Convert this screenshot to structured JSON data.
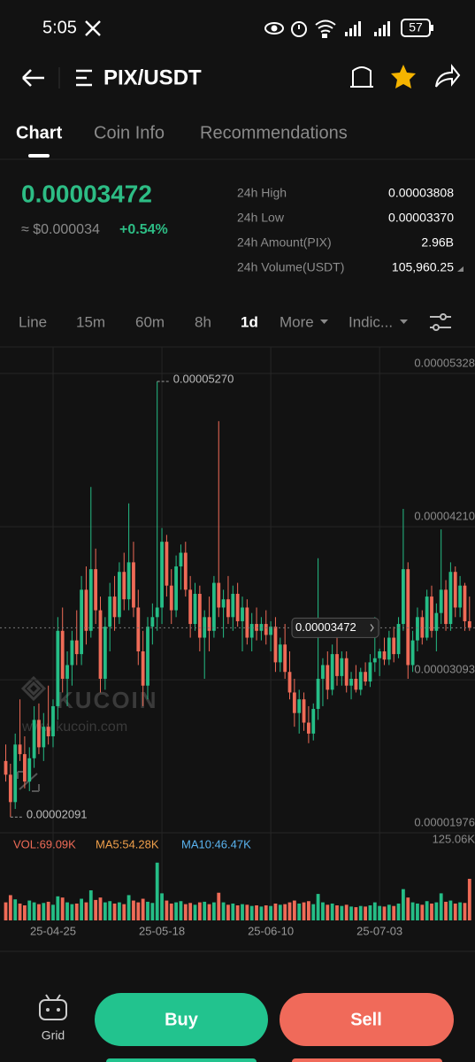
{
  "status_bar": {
    "time": "5:05",
    "battery": "57"
  },
  "header": {
    "title": "PIX/USDT"
  },
  "tabs": [
    "Chart",
    "Coin Info",
    "Recommendations"
  ],
  "ticker": {
    "price": "0.00003472",
    "usd": "≈ $0.000034",
    "change": "+0.54%",
    "stats": [
      {
        "label": "24h High",
        "value": "0.00003808"
      },
      {
        "label": "24h Low",
        "value": "0.00003370"
      },
      {
        "label": "24h Amount(PIX)",
        "value": "2.96B"
      },
      {
        "label": "24h Volume(USDT)",
        "value": "105,960.25"
      }
    ]
  },
  "intervals": [
    "Line",
    "15m",
    "60m",
    "8h",
    "1d",
    "More",
    "Indic..."
  ],
  "indicators": [
    "VOL:69.09K",
    "MA5:54.28K",
    "MA10:46.47K"
  ],
  "watermark": {
    "brand": "KUCOIN",
    "url": "www.kucoin.com"
  },
  "footer": {
    "grid": "Grid",
    "buy": "Buy",
    "sell": "Sell"
  },
  "chart_data": {
    "type": "candlestick",
    "up_color": "#25bd86",
    "down_color": "#ef6b57",
    "grid": true,
    "ylim": [
      1.976e-05,
      5.522e-05
    ],
    "yticks": [
      {
        "value": 5.328e-05,
        "label": "0.00005328"
      },
      {
        "value": 4.21e-05,
        "label": "0.00004210"
      },
      {
        "value": 3.093e-05,
        "label": "0.00003093"
      },
      {
        "value": 1.976e-05,
        "label": "0.00001976"
      }
    ],
    "high_marker": {
      "value": 5.27e-05,
      "label": "0.00005270"
    },
    "low_marker": {
      "value": 2.091e-05,
      "label": "0.00002091"
    },
    "last_price": {
      "value": 3.472e-05,
      "label": "0.00003472"
    },
    "categories": [
      null,
      null,
      null,
      null,
      null,
      null,
      null,
      null,
      null,
      null,
      "25-04-25",
      null,
      null,
      null,
      null,
      null,
      null,
      null,
      null,
      null,
      null,
      null,
      null,
      null,
      null,
      null,
      null,
      null,
      null,
      null,
      null,
      null,
      null,
      "25-05-18",
      null,
      null,
      null,
      null,
      null,
      null,
      null,
      null,
      null,
      null,
      null,
      null,
      null,
      null,
      null,
      null,
      null,
      null,
      null,
      null,
      null,
      null,
      "25-06-10",
      null,
      null,
      null,
      null,
      null,
      null,
      null,
      null,
      null,
      null,
      null,
      null,
      null,
      null,
      null,
      null,
      null,
      null,
      null,
      null,
      null,
      null,
      "25-07-03",
      null,
      null,
      null,
      null,
      null,
      null,
      null,
      null,
      null,
      null,
      null,
      null,
      null,
      null,
      null,
      null,
      null,
      null,
      null
    ],
    "candles": [
      [
        2.5e-05,
        2.62e-05,
        2.35e-05,
        2.4e-05
      ],
      [
        2.4e-05,
        2.48e-05,
        2.091e-05,
        2.2e-05
      ],
      [
        2.2e-05,
        2.7e-05,
        2.15e-05,
        2.62e-05
      ],
      [
        2.62e-05,
        2.95e-05,
        2.5e-05,
        2.55e-05
      ],
      [
        2.55e-05,
        2.68e-05,
        2.3e-05,
        2.35e-05
      ],
      [
        2.35e-05,
        2.6e-05,
        2.28e-05,
        2.52e-05
      ],
      [
        2.52e-05,
        2.9e-05,
        2.45e-05,
        2.8e-05
      ],
      [
        2.8e-05,
        2.92e-05,
        2.55e-05,
        2.6e-05
      ],
      [
        2.6e-05,
        2.85e-05,
        2.5e-05,
        2.75e-05
      ],
      [
        2.75e-05,
        3.05e-05,
        2.62e-05,
        2.68e-05
      ],
      [
        2.68e-05,
        2.95e-05,
        2.6e-05,
        2.9e-05
      ],
      [
        2.9e-05,
        3.55e-05,
        2.8e-05,
        3.45e-05
      ],
      [
        3.45e-05,
        3.62e-05,
        3e-05,
        3.1e-05
      ],
      [
        3.1e-05,
        3.3e-05,
        2.9e-05,
        3.2e-05
      ],
      [
        3.2e-05,
        3.45e-05,
        3.05e-05,
        3.38e-05
      ],
      [
        3.38e-05,
        3.6e-05,
        3.2e-05,
        3.28e-05
      ],
      [
        3.28e-05,
        3.85e-05,
        3.2e-05,
        3.75e-05
      ],
      [
        3.75e-05,
        3.92e-05,
        3.35e-05,
        3.45e-05
      ],
      [
        3.45e-05,
        4.5e-05,
        3.4e-05,
        3.9e-05
      ],
      [
        3.9e-05,
        4.05e-05,
        3.5e-05,
        3.6e-05
      ],
      [
        3.6e-05,
        3.7e-05,
        3e-05,
        3.1e-05
      ],
      [
        3.1e-05,
        3.55e-05,
        3.02e-05,
        3.48e-05
      ],
      [
        3.48e-05,
        3.8e-05,
        3.3e-05,
        3.7e-05
      ],
      [
        3.7e-05,
        3.85e-05,
        3.45e-05,
        3.55e-05
      ],
      [
        3.55e-05,
        3.95e-05,
        3.5e-05,
        3.88e-05
      ],
      [
        3.88e-05,
        4.02e-05,
        3.6e-05,
        3.68e-05
      ],
      [
        3.68e-05,
        4.38e-05,
        3.6e-05,
        3.95e-05
      ],
      [
        3.95e-05,
        4.1e-05,
        3.55e-05,
        3.62e-05
      ],
      [
        3.62e-05,
        3.75e-05,
        3.2e-05,
        3.3e-05
      ],
      [
        3.3e-05,
        3.45e-05,
        2.9e-05,
        3.05e-05
      ],
      [
        3.05e-05,
        3.55e-05,
        2.95e-05,
        3.48e-05
      ],
      [
        3.48e-05,
        3.65e-05,
        3.35e-05,
        3.55e-05
      ],
      [
        3.55e-05,
        5.27e-05,
        3.45e-05,
        3.62e-05
      ],
      [
        3.62e-05,
        4.2e-05,
        3.5e-05,
        4.1e-05
      ],
      [
        4.1e-05,
        4.15e-05,
        3.7e-05,
        3.78e-05
      ],
      [
        3.78e-05,
        3.9e-05,
        3.5e-05,
        3.6e-05
      ],
      [
        3.6e-05,
        4e-05,
        3.55e-05,
        3.92e-05
      ],
      [
        3.92e-05,
        4.08e-05,
        3.75e-05,
        4.02e-05
      ],
      [
        4.02e-05,
        4.1e-05,
        3.7e-05,
        3.75e-05
      ],
      [
        3.75e-05,
        3.85e-05,
        3.4e-05,
        3.5e-05
      ],
      [
        3.5e-05,
        3.8e-05,
        3.45e-05,
        3.72e-05
      ],
      [
        3.72e-05,
        3.78e-05,
        3.3e-05,
        3.4e-05
      ],
      [
        3.4e-05,
        3.6e-05,
        3.1e-05,
        3.55e-05
      ],
      [
        3.55e-05,
        3.7e-05,
        3.3e-05,
        3.45e-05
      ],
      [
        3.45e-05,
        3.85e-05,
        3.4e-05,
        3.8e-05
      ],
      [
        3.8e-05,
        4.98e-05,
        3.55e-05,
        3.62e-05
      ],
      [
        3.62e-05,
        3.75e-05,
        3.4e-05,
        3.68e-05
      ],
      [
        3.68e-05,
        3.85e-05,
        3.5e-05,
        3.55e-05
      ],
      [
        3.55e-05,
        3.78e-05,
        3.45e-05,
        3.72e-05
      ],
      [
        3.72e-05,
        3.8e-05,
        3.48e-05,
        3.52e-05
      ],
      [
        3.52e-05,
        3.7e-05,
        3.3e-05,
        3.62e-05
      ],
      [
        3.62e-05,
        3.68e-05,
        3.35e-05,
        3.4e-05
      ],
      [
        3.4e-05,
        3.58e-05,
        3.3e-05,
        3.5e-05
      ],
      [
        3.5e-05,
        3.62e-05,
        3.38e-05,
        3.45e-05
      ],
      [
        3.45e-05,
        3.55e-05,
        3.38e-05,
        3.5e-05
      ],
      [
        3.5e-05,
        3.6e-05,
        3.35e-05,
        3.42e-05
      ],
      [
        3.42e-05,
        3.52e-05,
        3.3e-05,
        3.48e-05
      ],
      [
        3.48e-05,
        3.55e-05,
        3.15e-05,
        3.22e-05
      ],
      [
        3.22e-05,
        3.4e-05,
        3.15e-05,
        3.35e-05
      ],
      [
        3.35e-05,
        3.5e-05,
        3.1e-05,
        3.15e-05
      ],
      [
        3.15e-05,
        3.3e-05,
        2.95e-05,
        3e-05
      ],
      [
        3e-05,
        3.1e-05,
        2.75e-05,
        2.85e-05
      ],
      [
        2.85e-05,
        3.02e-05,
        2.7e-05,
        2.95e-05
      ],
      [
        2.95e-05,
        3e-05,
        2.72e-05,
        2.78e-05
      ],
      [
        2.78e-05,
        2.9e-05,
        2.63e-05,
        2.7e-05
      ],
      [
        2.7e-05,
        2.92e-05,
        2.65e-05,
        2.88e-05
      ],
      [
        2.88e-05,
        3.98e-05,
        2.8e-05,
        3.1e-05
      ],
      [
        3.1e-05,
        3.25e-05,
        2.9e-05,
        3.2e-05
      ],
      [
        3.2e-05,
        3.3e-05,
        2.95e-05,
        3.02e-05
      ],
      [
        3.02e-05,
        3.35e-05,
        2.98e-05,
        3.28e-05
      ],
      [
        3.28e-05,
        3.4e-05,
        3.05e-05,
        3.12e-05
      ],
      [
        3.12e-05,
        3.3e-05,
        3.05e-05,
        3.25e-05
      ],
      [
        3.25e-05,
        3.3e-05,
        3e-05,
        3.05e-05
      ],
      [
        3.05e-05,
        3.15e-05,
        2.95e-05,
        3.1e-05
      ],
      [
        3.1e-05,
        3.2e-05,
        3e-05,
        3.02e-05
      ],
      [
        3.02e-05,
        3.18e-05,
        2.98e-05,
        3.15e-05
      ],
      [
        3.15e-05,
        3.22e-05,
        3.05e-05,
        3.08e-05
      ],
      [
        3.08e-05,
        3.28e-05,
        3.04e-05,
        3.22e-05
      ],
      [
        3.22e-05,
        3.55e-05,
        3.15e-05,
        3.25e-05
      ],
      [
        3.25e-05,
        3.32e-05,
        3.12e-05,
        3.3e-05
      ],
      [
        3.3e-05,
        3.4e-05,
        3.2e-05,
        3.24e-05
      ],
      [
        3.24e-05,
        3.45e-05,
        3.2e-05,
        3.4e-05
      ],
      [
        3.4e-05,
        3.48e-05,
        3.22e-05,
        3.28e-05
      ],
      [
        3.28e-05,
        3.55e-05,
        3.25e-05,
        3.5e-05
      ],
      [
        3.5e-05,
        4.34e-05,
        3.45e-05,
        3.9e-05
      ],
      [
        3.9e-05,
        3.95e-05,
        3.1e-05,
        3.2e-05
      ],
      [
        3.2e-05,
        3.45e-05,
        3.15e-05,
        3.38e-05
      ],
      [
        3.38e-05,
        3.62e-05,
        3.3e-05,
        3.55e-05
      ],
      [
        3.55e-05,
        3.6e-05,
        3.35e-05,
        3.4e-05
      ],
      [
        3.4e-05,
        3.75e-05,
        3.38e-05,
        3.7e-05
      ],
      [
        3.7e-05,
        3.78e-05,
        3.4e-05,
        3.45e-05
      ],
      [
        3.45e-05,
        3.65e-05,
        3.3e-05,
        3.58e-05
      ],
      [
        3.58e-05,
        4.19e-05,
        3.5e-05,
        3.75e-05
      ],
      [
        3.75e-05,
        3.82e-05,
        3.45e-05,
        3.5e-05
      ],
      [
        3.5e-05,
        3.95e-05,
        3.45e-05,
        3.88e-05
      ],
      [
        3.88e-05,
        3.92e-05,
        3.55e-05,
        3.62e-05
      ],
      [
        3.62e-05,
        3.85e-05,
        3.55e-05,
        3.78e-05
      ],
      [
        3.78e-05,
        3.8e-05,
        3.45e-05,
        3.52e-05
      ],
      [
        3.52e-05,
        3.7e-05,
        3.45e-05,
        3.472e-05
      ]
    ],
    "volume": [
      30000,
      42000,
      35000,
      28000,
      25000,
      33000,
      30000,
      27000,
      29000,
      31000,
      26000,
      40000,
      38000,
      30000,
      27000,
      28000,
      36000,
      30000,
      50000,
      34000,
      38000,
      30000,
      32000,
      28000,
      30000,
      27000,
      42000,
      33000,
      30000,
      36000,
      31000,
      29000,
      96000,
      45000,
      33000,
      28000,
      30000,
      32000,
      27000,
      29000,
      26000,
      30000,
      31000,
      27000,
      30000,
      46000,
      30000,
      26000,
      28000,
      25000,
      27000,
      26000,
      24000,
      25000,
      23000,
      25000,
      24000,
      28000,
      26000,
      27000,
      30000,
      33000,
      28000,
      30000,
      32000,
      27000,
      44000,
      30000,
      26000,
      28000,
      25000,
      24000,
      26000,
      23000,
      22000,
      24000,
      23000,
      25000,
      30000,
      24000,
      23000,
      26000,
      24000,
      28000,
      52000,
      38000,
      30000,
      28000,
      26000,
      32000,
      28000,
      30000,
      45000,
      31000,
      33000,
      28000,
      30000,
      29000,
      69090
    ],
    "volume_ylim": [
      0,
      125060
    ],
    "volume_ticks": [
      {
        "value": 125060,
        "label": "125.06K"
      }
    ]
  }
}
